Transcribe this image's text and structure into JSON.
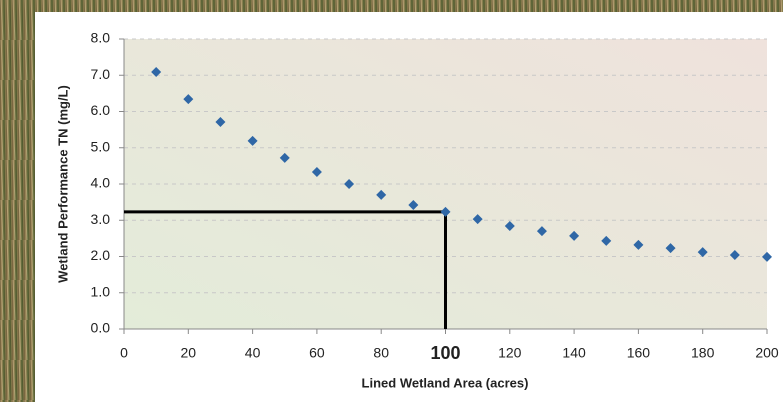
{
  "chart_data": {
    "type": "scatter",
    "x_label": "Lined Wetland Area (acres)",
    "y_label": "Wetland Performance TN (mg/L)",
    "x": [
      10,
      20,
      30,
      40,
      50,
      60,
      70,
      80,
      90,
      100,
      110,
      120,
      130,
      140,
      150,
      160,
      170,
      180,
      190,
      200
    ],
    "y": [
      7.09,
      6.34,
      5.71,
      5.19,
      4.72,
      4.33,
      4.0,
      3.7,
      3.42,
      3.23,
      3.03,
      2.84,
      2.7,
      2.57,
      2.43,
      2.32,
      2.23,
      2.12,
      2.04,
      1.99
    ],
    "color": "#2f67a6",
    "xlim": [
      0,
      200
    ],
    "xticks": [
      0,
      20,
      40,
      60,
      80,
      100,
      120,
      140,
      160,
      180,
      200
    ],
    "ylim": [
      0,
      8
    ],
    "yticks": [
      {
        "value": 0,
        "label": "0.0"
      },
      {
        "value": 1,
        "label": "1.0"
      },
      {
        "value": 2,
        "label": "2.0"
      },
      {
        "value": 3,
        "label": "3.0"
      },
      {
        "value": 4,
        "label": "4.0"
      },
      {
        "value": 5,
        "label": "5.0"
      },
      {
        "value": 6,
        "label": "6.0"
      },
      {
        "value": 7,
        "label": "7.0"
      },
      {
        "value": 8,
        "label": "8.0"
      }
    ],
    "grid": true,
    "highlight_point_index": 9
  }
}
